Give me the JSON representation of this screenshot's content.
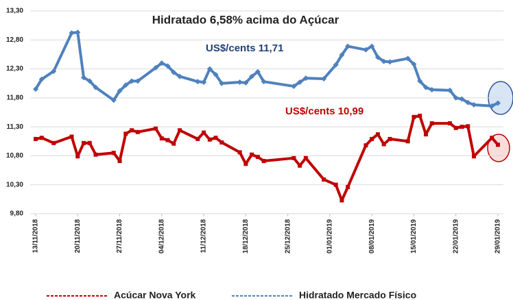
{
  "chart_data": {
    "type": "line",
    "title": "Hidratado 6,58% acima do Açúcar",
    "annotations": [
      "US$/cents  11,71",
      "US$/cents  10,99"
    ],
    "x": [
      "13/11/2018",
      "14/11/2018",
      "16/11/2018",
      "19/11/2018",
      "20/11/2018",
      "21/11/2018",
      "22/11/2018",
      "23/11/2018",
      "26/11/2018",
      "27/11/2018",
      "28/11/2018",
      "29/11/2018",
      "30/11/2018",
      "03/12/2018",
      "04/12/2018",
      "05/12/2018",
      "06/12/2018",
      "07/12/2018",
      "10/12/2018",
      "11/12/2018",
      "12/12/2018",
      "13/12/2018",
      "14/12/2018",
      "17/12/2018",
      "18/12/2018",
      "19/12/2018",
      "20/12/2018",
      "21/12/2018",
      "26/12/2018",
      "27/12/2018",
      "28/12/2018",
      "31/12/2018",
      "02/01/2019",
      "03/01/2019",
      "04/01/2019",
      "07/01/2019",
      "08/01/2019",
      "09/01/2019",
      "10/01/2019",
      "11/01/2019",
      "14/01/2019",
      "15/01/2019",
      "16/01/2019",
      "17/01/2019",
      "18/01/2019",
      "21/01/2019",
      "22/01/2019",
      "23/01/2019",
      "24/01/2019",
      "25/01/2019",
      "28/01/2019",
      "29/01/2019"
    ],
    "series": [
      {
        "name": "Acúcar Nova York",
        "color": "#c00000",
        "values": [
          11.09,
          11.11,
          11.02,
          11.13,
          10.79,
          11.02,
          11.02,
          10.82,
          10.85,
          10.71,
          11.18,
          11.24,
          11.21,
          11.27,
          11.1,
          11.07,
          11.01,
          11.24,
          11.09,
          11.2,
          11.08,
          11.11,
          11.03,
          10.86,
          10.66,
          10.82,
          10.78,
          10.71,
          10.76,
          10.63,
          10.76,
          10.39,
          10.3,
          10.03,
          10.26,
          10.98,
          11.09,
          11.17,
          11.0,
          11.09,
          11.05,
          11.47,
          11.49,
          11.17,
          11.36,
          11.36,
          11.28,
          11.3,
          11.31,
          10.79,
          11.11,
          10.99
        ]
      },
      {
        "name": "Hidratado  Mercado  Físico",
        "color": "#4f81bd",
        "values": [
          11.95,
          12.12,
          12.26,
          12.92,
          12.93,
          12.15,
          12.09,
          11.98,
          11.76,
          11.92,
          12.02,
          12.09,
          12.09,
          12.32,
          12.4,
          12.35,
          12.24,
          12.17,
          12.08,
          12.07,
          12.3,
          12.2,
          12.05,
          12.07,
          12.06,
          12.17,
          12.25,
          12.08,
          12.0,
          12.07,
          12.14,
          12.13,
          12.37,
          12.54,
          12.69,
          12.63,
          12.69,
          12.5,
          12.43,
          12.42,
          12.48,
          12.38,
          12.09,
          11.98,
          11.94,
          11.93,
          11.8,
          11.78,
          11.72,
          11.68,
          11.66,
          11.71
        ]
      }
    ],
    "xlim": [
      "13/11/2018",
      "29/01/2019"
    ],
    "xticks": [
      "13/11/2018",
      "20/11/2018",
      "27/11/2018",
      "04/12/2018",
      "11/12/2018",
      "18/12/2018",
      "25/12/2018",
      "01/01/2019",
      "08/01/2019",
      "15/01/2019",
      "22/01/2019",
      "29/01/2019"
    ],
    "ylim": [
      9.8,
      13.3
    ],
    "yticks": [
      {
        "value": 9.8,
        "label": "9,80"
      },
      {
        "value": 10.3,
        "label": "10,30"
      },
      {
        "value": 10.8,
        "label": "10,80"
      },
      {
        "value": 11.3,
        "label": "11,30"
      },
      {
        "value": 11.8,
        "label": "11,80"
      },
      {
        "value": 12.3,
        "label": "12,30"
      },
      {
        "value": 12.8,
        "label": "12,80"
      },
      {
        "value": 13.3,
        "label": "13,30"
      }
    ],
    "grid": true
  }
}
